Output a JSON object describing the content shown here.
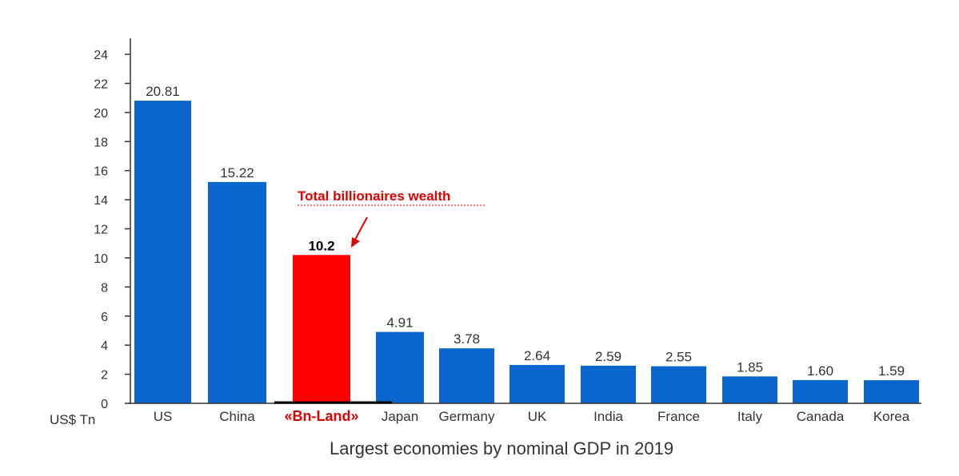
{
  "chart_data": {
    "type": "bar",
    "title": "Largest economies by nominal GDP in 2019",
    "ylabel": "US$ Tn",
    "xlabel": "",
    "ylim": [
      0,
      24
    ],
    "yticks": [
      0,
      2,
      4,
      6,
      8,
      10,
      12,
      14,
      16,
      18,
      20,
      22,
      24
    ],
    "grid": false,
    "categories": [
      "US",
      "China",
      "«Bn-Land»",
      "Japan",
      "Germany",
      "UK",
      "India",
      "France",
      "Italy",
      "Canada",
      "Korea"
    ],
    "values": [
      20.81,
      15.22,
      10.2,
      4.91,
      3.78,
      2.64,
      2.59,
      2.55,
      1.85,
      1.6,
      1.59
    ],
    "value_labels": [
      "20.81",
      "15.22",
      "10.2",
      "4.91",
      "3.78",
      "2.64",
      "2.59",
      "2.55",
      "1.85",
      "1.60",
      "1.59"
    ],
    "highlight_index": 2,
    "annotation": {
      "text": "Total billionaires wealth"
    },
    "colors": {
      "bar": "#0a66cc",
      "highlight": "#ff0000",
      "annotation": "#e00000",
      "axis": "#333333"
    }
  }
}
